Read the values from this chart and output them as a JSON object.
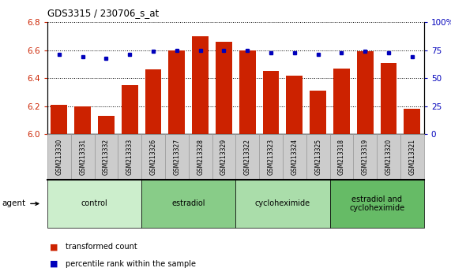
{
  "title": "GDS3315 / 230706_s_at",
  "samples": [
    "GSM213330",
    "GSM213331",
    "GSM213332",
    "GSM213333",
    "GSM213326",
    "GSM213327",
    "GSM213328",
    "GSM213329",
    "GSM213322",
    "GSM213323",
    "GSM213324",
    "GSM213325",
    "GSM213318",
    "GSM213319",
    "GSM213320",
    "GSM213321"
  ],
  "bar_values": [
    6.21,
    6.2,
    6.13,
    6.35,
    6.46,
    6.6,
    6.7,
    6.66,
    6.6,
    6.45,
    6.42,
    6.31,
    6.47,
    6.59,
    6.51,
    6.18
  ],
  "dot_values": [
    71,
    69,
    68,
    71,
    74,
    75,
    75,
    75,
    75,
    73,
    73,
    71,
    73,
    74,
    73,
    69
  ],
  "groups": [
    {
      "label": "control",
      "start": 0,
      "end": 3,
      "color": "#cceecc"
    },
    {
      "label": "estradiol",
      "start": 4,
      "end": 7,
      "color": "#88cc88"
    },
    {
      "label": "cycloheximide",
      "start": 8,
      "end": 11,
      "color": "#aaddaa"
    },
    {
      "label": "estradiol and\ncycloheximide",
      "start": 12,
      "end": 15,
      "color": "#66bb66"
    }
  ],
  "bar_color": "#cc2200",
  "dot_color": "#0000bb",
  "ylim_left": [
    6.0,
    6.8
  ],
  "ylim_right": [
    0,
    100
  ],
  "yticks_left": [
    6.0,
    6.2,
    6.4,
    6.6,
    6.8
  ],
  "yticks_right": [
    0,
    25,
    50,
    75,
    100
  ],
  "agent_label": "agent",
  "legend1": "transformed count",
  "legend2": "percentile rank within the sample",
  "background_plot": "#ffffff",
  "tick_label_bg": "#cccccc",
  "tick_label_edge": "#999999"
}
